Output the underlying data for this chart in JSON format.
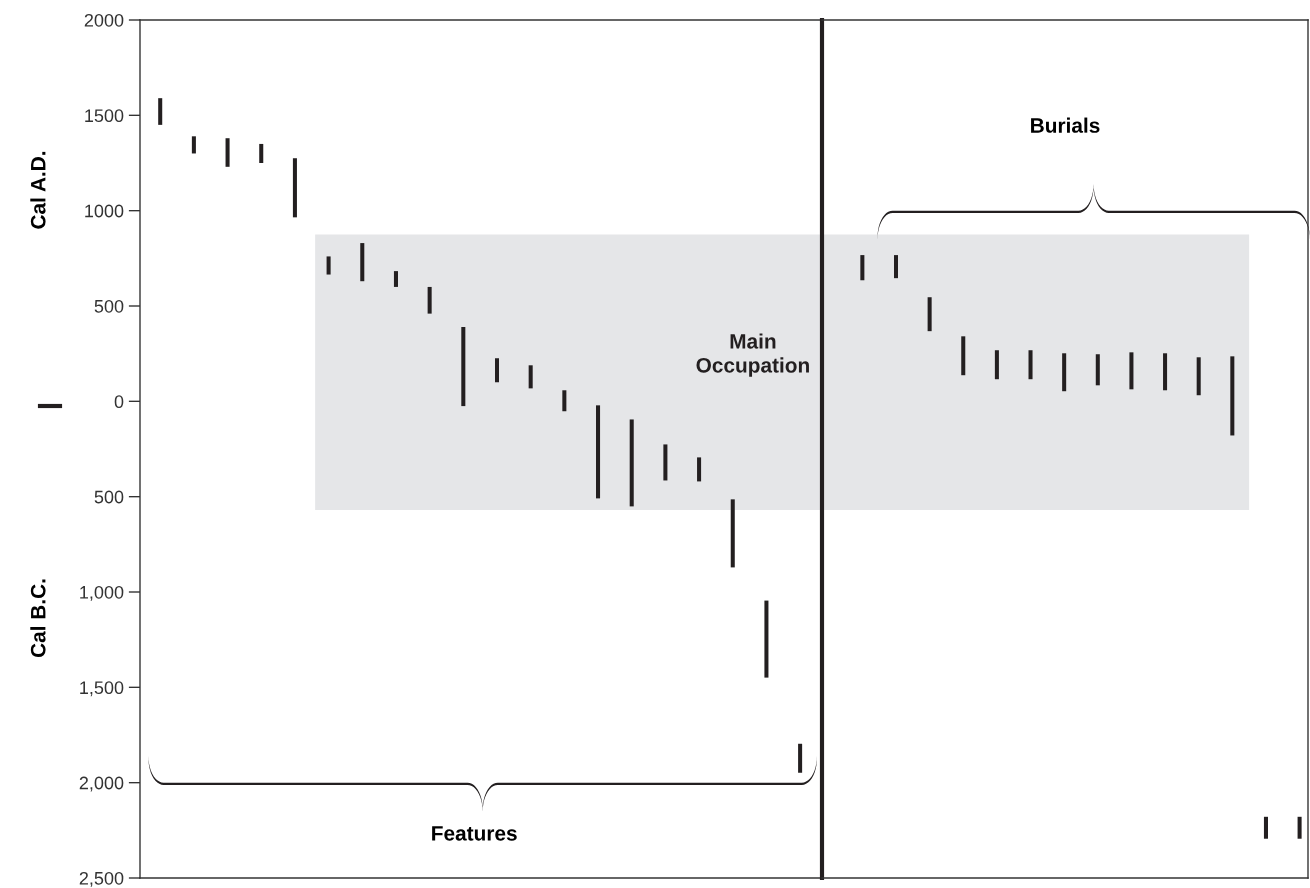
{
  "chart_data": [
    {
      "type": "bar",
      "ylabel": "Cal A.D.",
      "annotations": [
        "Features",
        "Cal B.C."
      ],
      "categories": [
        null,
        null,
        null,
        null,
        null,
        null,
        null,
        null,
        null,
        null,
        null,
        null,
        null,
        null,
        null,
        null,
        null,
        null,
        null,
        null
      ],
      "series": [
        {
          "color": "#231f20",
          "base": [
            1450,
            1300,
            1230,
            1250,
            965,
            665,
            630,
            600,
            460,
            -25,
            100,
            68,
            -52,
            -509,
            -551,
            -415,
            -420,
            -871,
            -1449,
            -1948
          ],
          "values": [
            140,
            90,
            150,
            100,
            310,
            95,
            200,
            83,
            140,
            415,
            126,
            121,
            110,
            488,
            456,
            189,
            126,
            357,
            404,
            152
          ]
        }
      ],
      "ylim": [
        -2500,
        2000
      ],
      "yticks": [
        2000,
        1500,
        1000,
        500,
        0,
        {
          "value": -500,
          "label": "500"
        },
        {
          "value": -1000,
          "label": "1,000"
        },
        {
          "value": -1500,
          "label": "1,500"
        },
        {
          "value": -2000,
          "label": "2,000"
        },
        {
          "value": -2500,
          "label": "2,500"
        }
      ],
      "bands": [
        {
          "axis": "y",
          "from": -570,
          "to": 875,
          "label": "Main Occupation",
          "color": "#e5e6e8"
        }
      ],
      "tick_labels": "y"
    },
    {
      "type": "bar",
      "annotations": [
        "Burials"
      ],
      "categories": [
        null,
        null,
        null,
        null,
        null,
        null,
        null,
        null,
        null,
        null,
        null,
        null,
        null,
        null
      ],
      "series": [
        {
          "color": "#231f20",
          "base": [
            635,
            646,
            368,
            137,
            116,
            116,
            53,
            84,
            63,
            58,
            32,
            -179,
            -2294,
            -2294
          ],
          "values": [
            132,
            121,
            178,
            204,
            152,
            152,
            199,
            163,
            194,
            194,
            199,
            415,
            115,
            115
          ]
        }
      ],
      "ylim": [
        -2500,
        2000
      ],
      "bands": [
        {
          "axis": "y",
          "from": -570,
          "to": 875,
          "color": "#e5e6e8"
        }
      ],
      "tick_labels": false
    }
  ]
}
